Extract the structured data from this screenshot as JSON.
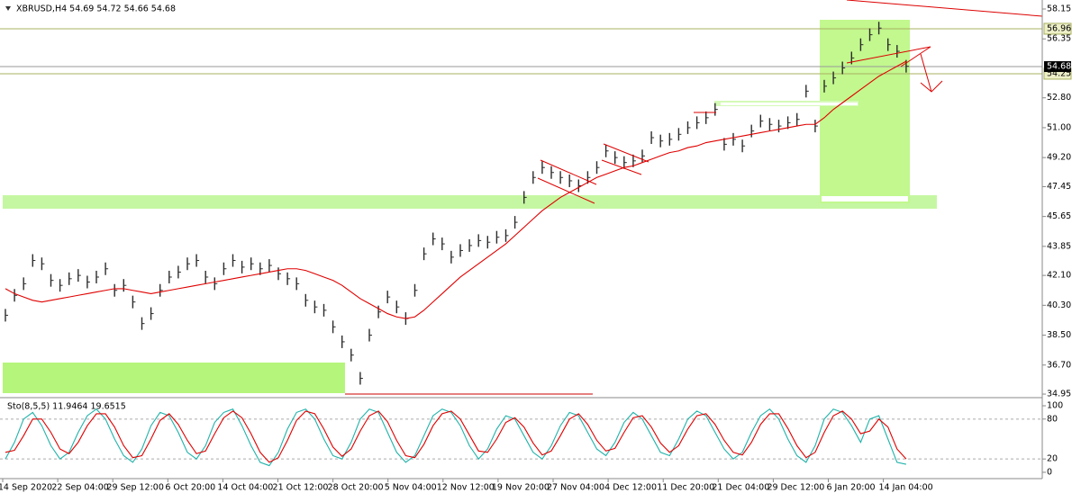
{
  "chart_data": [
    {
      "type": "bar-series",
      "title": "XBRUSD,H4  54.69 54.72 54.66 54.68",
      "series": [
        {
          "name": "XBRUSD",
          "color": "#2b2b2b",
          "values": [
            39.7,
            40.9,
            41.6,
            43.0,
            42.8,
            41.8,
            41.5,
            41.9,
            42.1,
            41.7,
            42.0,
            42.5,
            41.2,
            41.5,
            40.5,
            39.2,
            39.8,
            41.2,
            42.0,
            42.3,
            42.8,
            43.0,
            42.0,
            41.6,
            42.5,
            43.0,
            42.6,
            42.8,
            42.5,
            42.7,
            42.2,
            41.9,
            41.6,
            40.6,
            40.2,
            40.0,
            39.0,
            38.1,
            37.3,
            35.9,
            38.5,
            39.9,
            40.8,
            40.2,
            39.5,
            41.2,
            43.4,
            44.3,
            44.0,
            43.2,
            43.6,
            43.9,
            44.2,
            44.1,
            44.4,
            44.5,
            45.3,
            46.8,
            48.0,
            48.6,
            48.3,
            48.0,
            47.8,
            47.5,
            48.0,
            48.6,
            49.6,
            49.2,
            48.9,
            49.0,
            49.3,
            50.4,
            50.2,
            50.3,
            50.6,
            51.0,
            51.3,
            51.6,
            52.1,
            50.0,
            50.3,
            49.9,
            50.8,
            51.4,
            51.2,
            51.1,
            51.3,
            51.5,
            53.2,
            51.1,
            53.5,
            54.0,
            54.6,
            55.2,
            56.0,
            56.6,
            57.0,
            56.0,
            55.6,
            54.7
          ]
        },
        {
          "name": "MA",
          "color": "#e00000",
          "values": [
            41.3,
            41.0,
            40.8,
            40.6,
            40.5,
            40.6,
            40.7,
            40.8,
            40.9,
            41.0,
            41.1,
            41.2,
            41.3,
            41.3,
            41.2,
            41.1,
            41.0,
            41.1,
            41.2,
            41.3,
            41.4,
            41.5,
            41.6,
            41.7,
            41.8,
            41.9,
            42.0,
            42.1,
            42.2,
            42.3,
            42.4,
            42.5,
            42.5,
            42.4,
            42.2,
            42.0,
            41.8,
            41.5,
            41.1,
            40.7,
            40.4,
            40.1,
            39.8,
            39.6,
            39.5,
            39.6,
            40.0,
            40.5,
            41.0,
            41.5,
            42.0,
            42.4,
            42.8,
            43.2,
            43.6,
            44.0,
            44.5,
            45.0,
            45.5,
            46.0,
            46.4,
            46.8,
            47.1,
            47.4,
            47.7,
            48.0,
            48.2,
            48.4,
            48.6,
            48.7,
            48.9,
            49.1,
            49.3,
            49.5,
            49.6,
            49.8,
            49.9,
            50.1,
            50.2,
            50.3,
            50.4,
            50.5,
            50.6,
            50.7,
            50.8,
            50.9,
            51.0,
            51.1,
            51.2,
            51.2,
            51.6,
            52.1,
            52.5,
            52.9,
            53.3,
            53.7,
            54.1,
            54.4,
            54.7,
            55.0
          ]
        }
      ],
      "ylim": [
        34.79,
        58.53
      ],
      "yticks": [
        58.15,
        56.35,
        {
          "value": 52.8,
          "label": "52.80"
        },
        {
          "value": 51,
          "label": "51.00"
        },
        {
          "value": 49.2,
          "label": "49.20"
        },
        47.45,
        45.65,
        43.85,
        {
          "value": 42.1,
          "label": "42.10"
        },
        {
          "value": 40.3,
          "label": "40.30"
        },
        {
          "value": 38.5,
          "label": "38.50"
        },
        {
          "value": 36.7,
          "label": "36.70"
        },
        34.95
      ],
      "levels": [
        56.96,
        54.25
      ],
      "current_price": 54.68,
      "time_labels": [
        "14 Sep 2020",
        "22 Sep 04:00",
        "29 Sep 12:00",
        "6 Oct 20:00",
        "14 Oct 04:00",
        "21 Oct 12:00",
        "28 Oct 20:00",
        "5 Nov 04:00",
        "12 Nov 12:00",
        "19 Nov 20:00",
        "27 Nov 04:00",
        "4 Dec 12:00",
        "11 Dec 20:00",
        "21 Dec 04:00",
        "29 Dec 12:00",
        "6 Jan 20:00",
        "14 Jan 04:00"
      ]
    },
    {
      "type": "line",
      "title": "Sto(8,5,5) 11.9464 19.6515",
      "series": [
        {
          "name": "Main",
          "color": "#20b2aa",
          "values": [
            20,
            45,
            80,
            90,
            70,
            40,
            20,
            30,
            60,
            85,
            95,
            80,
            50,
            25,
            15,
            35,
            70,
            90,
            85,
            60,
            30,
            20,
            40,
            75,
            90,
            95,
            70,
            40,
            15,
            10,
            30,
            65,
            90,
            95,
            80,
            50,
            25,
            20,
            45,
            80,
            95,
            90,
            60,
            30,
            15,
            25,
            55,
            85,
            95,
            90,
            70,
            40,
            20,
            35,
            65,
            85,
            80,
            55,
            30,
            20,
            40,
            70,
            90,
            85,
            60,
            35,
            25,
            45,
            75,
            90,
            80,
            55,
            30,
            25,
            50,
            80,
            92,
            85,
            60,
            35,
            20,
            30,
            60,
            85,
            95,
            80,
            50,
            25,
            15,
            40,
            80,
            95,
            90,
            70,
            45,
            80,
            85,
            50,
            15,
            12
          ]
        },
        {
          "name": "Signal",
          "color": "#e00000",
          "values": [
            30,
            33,
            55,
            80,
            80,
            60,
            35,
            28,
            45,
            70,
            88,
            88,
            68,
            40,
            22,
            25,
            50,
            78,
            88,
            72,
            48,
            28,
            32,
            58,
            82,
            92,
            82,
            58,
            30,
            15,
            22,
            48,
            78,
            92,
            88,
            65,
            38,
            24,
            35,
            62,
            85,
            92,
            76,
            48,
            25,
            22,
            42,
            70,
            88,
            92,
            80,
            56,
            32,
            30,
            50,
            75,
            82,
            68,
            44,
            26,
            32,
            55,
            80,
            88,
            72,
            48,
            32,
            36,
            60,
            82,
            85,
            68,
            44,
            30,
            40,
            65,
            85,
            88,
            72,
            48,
            30,
            26,
            45,
            72,
            88,
            88,
            66,
            40,
            22,
            30,
            60,
            85,
            92,
            80,
            58,
            62,
            80,
            68,
            35,
            20
          ]
        }
      ],
      "ylim": [
        -6.8,
        109.5
      ],
      "yticks": [
        100,
        80,
        20,
        0
      ],
      "levels": [
        80,
        20
      ]
    }
  ]
}
